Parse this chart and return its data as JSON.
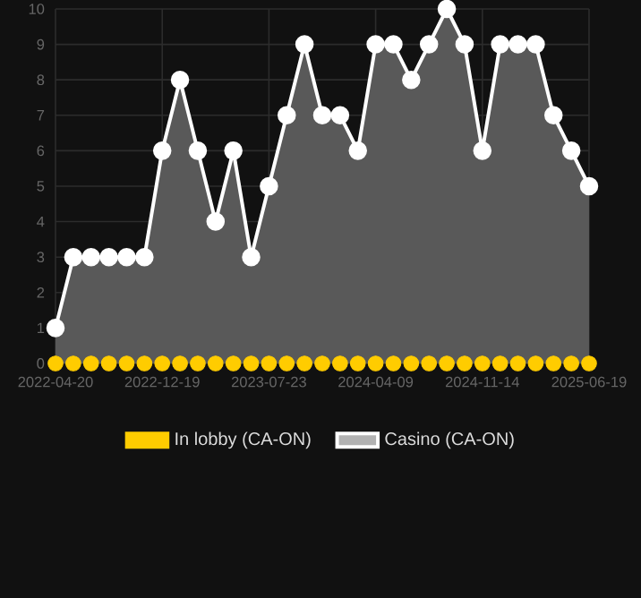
{
  "chart_data": {
    "type": "area",
    "categories": [
      "2022-04-20",
      null,
      null,
      null,
      null,
      null,
      "2022-12-19",
      null,
      null,
      null,
      null,
      null,
      "2023-07-23",
      null,
      null,
      null,
      null,
      null,
      "2024-04-09",
      null,
      null,
      null,
      null,
      null,
      "2024-11-14",
      null,
      null,
      null,
      null,
      null,
      "2025-06-19"
    ],
    "series": [
      {
        "name": "In lobby (CA-ON)",
        "type": "scatter",
        "color": "#ffcc00",
        "values": [
          0,
          0,
          0,
          0,
          0,
          0,
          0,
          0,
          0,
          0,
          0,
          0,
          0,
          0,
          0,
          0,
          0,
          0,
          0,
          0,
          0,
          0,
          0,
          0,
          0,
          0,
          0,
          0,
          0,
          0,
          0
        ]
      },
      {
        "name": "Casino (CA-ON)",
        "color": "#ffffff",
        "values": [
          1,
          3,
          3,
          3,
          3,
          3,
          6,
          8,
          6,
          4,
          6,
          3,
          5,
          7,
          9,
          7,
          7,
          6,
          9,
          9,
          8,
          9,
          10,
          9,
          6,
          9,
          9,
          9,
          7,
          6,
          5
        ]
      }
    ],
    "ylim": [
      0,
      10
    ],
    "yticks": [
      0,
      1,
      2,
      3,
      4,
      5,
      6,
      7,
      8,
      9,
      10
    ],
    "grid": true,
    "legend": "bottom",
    "marker": "circle",
    "line_style": "solid"
  }
}
